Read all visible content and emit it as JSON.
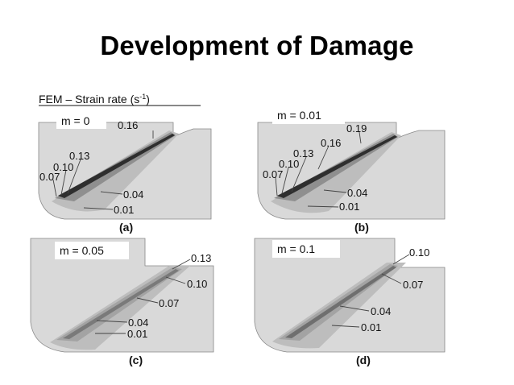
{
  "slide": {
    "title": "Development of Damage"
  },
  "figure": {
    "header": "FEM – Strain rate (s",
    "header_sup": "-1",
    "header_close": ")",
    "colors": {
      "panel": "#d9d9d9",
      "band_outer": "#bdbdbd",
      "band_mid": "#8f8f8f",
      "band_core": "#2e2e2e",
      "line": "#444444"
    },
    "panels": [
      {
        "caption": "(a)",
        "m_label": "m = 0",
        "contours": [
          "0.16",
          "0.13",
          "0.10",
          "0.07",
          "0.04",
          "0.01"
        ]
      },
      {
        "caption": "(b)",
        "m_label": "m = 0.01",
        "contours": [
          "0.19",
          "0.16",
          "0.13",
          "0.10",
          "0.07",
          "0.04",
          "0.01"
        ]
      },
      {
        "caption": "(c)",
        "m_label": "m = 0.05",
        "contours": [
          "0.13",
          "0.10",
          "0.07",
          "0.04",
          "0.01"
        ]
      },
      {
        "caption": "(d)",
        "m_label": "m = 0.1",
        "contours": [
          "0.10",
          "0.07",
          "0.04",
          "0.01"
        ]
      }
    ]
  }
}
